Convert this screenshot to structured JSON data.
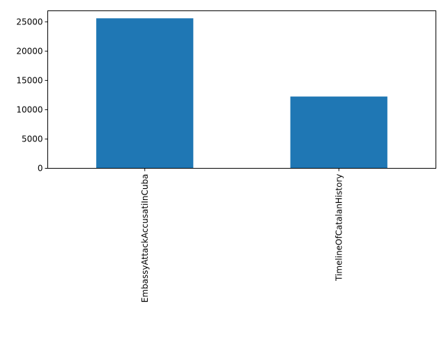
{
  "chart_data": {
    "type": "bar",
    "categories": [
      "EmbassyAttackAccusatiInCuba",
      "TimelineOfCatalanHistory"
    ],
    "values": [
      25600,
      12250
    ],
    "title": "",
    "xlabel": "",
    "ylabel": "",
    "ylim": [
      0,
      26880
    ],
    "yticks": [
      0,
      5000,
      10000,
      15000,
      20000,
      25000
    ],
    "ytick_labels": [
      "0",
      "5000",
      "10000",
      "15000",
      "20000",
      "25000"
    ],
    "grid": false,
    "legend": "none",
    "bar_color": "#1f77b4"
  }
}
